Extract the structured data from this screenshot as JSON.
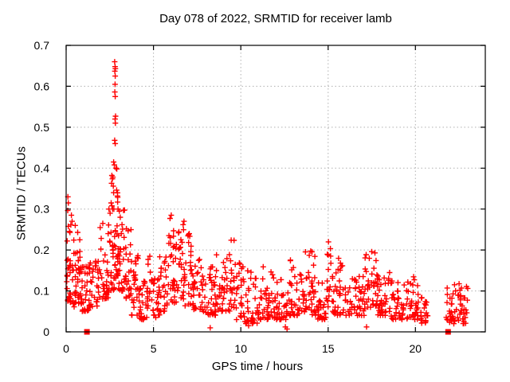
{
  "chart_data": {
    "type": "scatter",
    "title": "Day 078 of 2022, SRMTID for receiver lamb",
    "xlabel": "GPS time / hours",
    "ylabel": "SRMTID / TECUs",
    "xlim": [
      0,
      24
    ],
    "ylim": [
      0,
      0.7
    ],
    "xticks": [
      0,
      5,
      10,
      15,
      20
    ],
    "xtick_labels": [
      "0",
      "5",
      "10",
      "15",
      "20"
    ],
    "yticks": [
      0,
      0.1,
      0.2,
      0.3,
      0.4,
      0.5,
      0.6,
      0.7
    ],
    "ytick_labels": [
      "0",
      "0.1",
      "0.2",
      "0.3",
      "0.4",
      "0.5",
      "0.6",
      "0.7"
    ],
    "grid": true,
    "legend": null,
    "marker": {
      "symbol": "plus-cross",
      "color": "#ff0000",
      "size": 7,
      "stroke_width": 1.4
    },
    "zero_marker": {
      "symbol": "filled-square",
      "color": "#ff0000",
      "size": 7
    },
    "grid_color": "#b0b0b0",
    "axis_color": "#000000",
    "text_color": "#000000",
    "background_color": "#ffffff",
    "seed": 20220318,
    "bands_format": "[x_start_hours, x_end_hours, y_min_TECUs, y_max_TECUs, point_count] — envelope of the dense scatter band read from the plot",
    "bands": [
      [
        0.0,
        0.3,
        0.07,
        0.21,
        22
      ],
      [
        0.02,
        0.3,
        0.21,
        0.3,
        6
      ],
      [
        0.3,
        0.8,
        0.06,
        0.19,
        30
      ],
      [
        0.35,
        0.8,
        0.19,
        0.24,
        5
      ],
      [
        0.8,
        1.3,
        0.05,
        0.16,
        30
      ],
      [
        1.3,
        1.9,
        0.06,
        0.19,
        34
      ],
      [
        1.9,
        2.4,
        0.08,
        0.24,
        30
      ],
      [
        2.4,
        2.75,
        0.1,
        0.32,
        26
      ],
      [
        2.75,
        3.0,
        0.13,
        0.35,
        26
      ],
      [
        3.0,
        3.35,
        0.1,
        0.3,
        24
      ],
      [
        3.35,
        3.75,
        0.08,
        0.25,
        24
      ],
      [
        3.75,
        4.2,
        0.04,
        0.21,
        26
      ],
      [
        4.2,
        4.65,
        0.03,
        0.15,
        24
      ],
      [
        4.65,
        4.85,
        0.05,
        0.19,
        12
      ],
      [
        4.85,
        5.35,
        0.03,
        0.13,
        26
      ],
      [
        5.35,
        5.8,
        0.05,
        0.2,
        24
      ],
      [
        5.8,
        6.3,
        0.07,
        0.24,
        28
      ],
      [
        6.3,
        6.75,
        0.08,
        0.25,
        24
      ],
      [
        6.75,
        7.3,
        0.06,
        0.24,
        30
      ],
      [
        7.3,
        7.95,
        0.05,
        0.18,
        30
      ],
      [
        7.95,
        8.55,
        0.04,
        0.16,
        30
      ],
      [
        8.55,
        9.05,
        0.05,
        0.2,
        26
      ],
      [
        9.05,
        9.75,
        0.05,
        0.225,
        32
      ],
      [
        9.75,
        10.15,
        0.03,
        0.17,
        20
      ],
      [
        10.15,
        11.0,
        0.02,
        0.15,
        38
      ],
      [
        11.0,
        11.9,
        0.03,
        0.17,
        40
      ],
      [
        11.9,
        12.7,
        0.03,
        0.13,
        38
      ],
      [
        12.7,
        13.5,
        0.04,
        0.19,
        38
      ],
      [
        13.5,
        14.4,
        0.04,
        0.2,
        42
      ],
      [
        14.4,
        14.9,
        0.03,
        0.13,
        26
      ],
      [
        14.9,
        15.25,
        0.06,
        0.22,
        18
      ],
      [
        15.25,
        16.1,
        0.04,
        0.18,
        38
      ],
      [
        16.1,
        17.1,
        0.04,
        0.14,
        44
      ],
      [
        17.1,
        17.85,
        0.06,
        0.195,
        36
      ],
      [
        17.85,
        18.6,
        0.04,
        0.15,
        36
      ],
      [
        18.6,
        19.5,
        0.03,
        0.13,
        38
      ],
      [
        19.5,
        20.3,
        0.03,
        0.135,
        34
      ],
      [
        20.3,
        20.85,
        0.02,
        0.09,
        20
      ],
      [
        21.7,
        23.0,
        0.02,
        0.125,
        60
      ]
    ],
    "points_format": "[x_hours, y_TECUs] — individually readable markers (spike near 03:00 GPS time and other outliers)",
    "points": [
      [
        0.1,
        0.33
      ],
      [
        0.13,
        0.315
      ],
      [
        0.3,
        0.285
      ],
      [
        0.34,
        0.27
      ],
      [
        0.52,
        0.26
      ],
      [
        0.66,
        0.243
      ],
      [
        0.78,
        0.225
      ],
      [
        1.95,
        0.255
      ],
      [
        2.1,
        0.265
      ],
      [
        2.45,
        0.3
      ],
      [
        2.52,
        0.29
      ],
      [
        2.78,
        0.66
      ],
      [
        2.8,
        0.648
      ],
      [
        2.82,
        0.643
      ],
      [
        2.79,
        0.637
      ],
      [
        2.81,
        0.625
      ],
      [
        2.8,
        0.605
      ],
      [
        2.79,
        0.586
      ],
      [
        2.81,
        0.575
      ],
      [
        2.83,
        0.527
      ],
      [
        2.8,
        0.52
      ],
      [
        2.82,
        0.51
      ],
      [
        2.78,
        0.468
      ],
      [
        2.81,
        0.46
      ],
      [
        2.72,
        0.415
      ],
      [
        2.76,
        0.408
      ],
      [
        2.86,
        0.4
      ],
      [
        2.9,
        0.398
      ],
      [
        2.62,
        0.382
      ],
      [
        2.68,
        0.378
      ],
      [
        2.65,
        0.374
      ],
      [
        2.6,
        0.363
      ],
      [
        2.7,
        0.356
      ],
      [
        2.72,
        0.34
      ],
      [
        2.94,
        0.332
      ],
      [
        2.58,
        0.315
      ],
      [
        2.62,
        0.308
      ],
      [
        2.66,
        0.3
      ],
      [
        2.97,
        0.3
      ],
      [
        3.05,
        0.295
      ],
      [
        3.1,
        0.28
      ],
      [
        3.2,
        0.262
      ],
      [
        3.45,
        0.252
      ],
      [
        3.55,
        0.247
      ],
      [
        5.95,
        0.277
      ],
      [
        6.02,
        0.285
      ],
      [
        6.15,
        0.247
      ],
      [
        6.7,
        0.262
      ],
      [
        6.75,
        0.27
      ],
      [
        7.05,
        0.24
      ],
      [
        9.45,
        0.224
      ],
      [
        15.02,
        0.22
      ],
      [
        17.5,
        0.196
      ],
      [
        8.25,
        0.01
      ],
      [
        10.45,
        0.015
      ],
      [
        12.55,
        0.012
      ],
      [
        12.65,
        0.007
      ],
      [
        17.2,
        0.012
      ]
    ],
    "zero_points_format": "[x_hours, y] — solid square markers sitting on the y=0 axis",
    "zero_points": [
      [
        1.19,
        0
      ],
      [
        21.87,
        0
      ]
    ]
  }
}
